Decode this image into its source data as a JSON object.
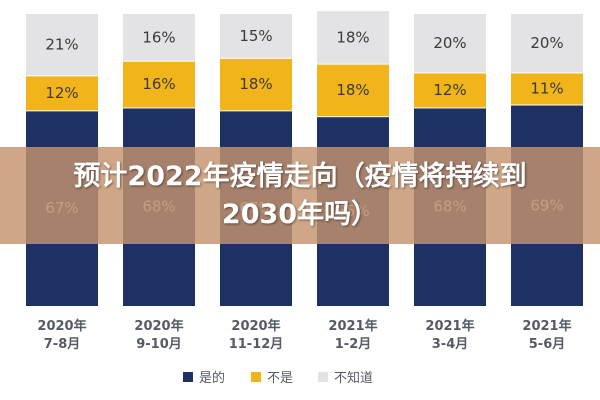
{
  "chart_data": {
    "type": "bar",
    "stacked": true,
    "categories": [
      "2020年\n7-8月",
      "2020年\n9-10月",
      "2020年\n11-12月",
      "2021年\n1-2月",
      "2021年\n3-4月",
      "2021年\n5-6月"
    ],
    "series": [
      {
        "name": "是的",
        "color": "#1e3165",
        "values": [
          67,
          68,
          67,
          65,
          68,
          69
        ]
      },
      {
        "name": "不是",
        "color": "#f2b41b",
        "values": [
          12,
          16,
          18,
          18,
          12,
          11
        ]
      },
      {
        "name": "不知道",
        "color": "#e3e3e5",
        "values": [
          21,
          16,
          15,
          18,
          20,
          20
        ]
      }
    ],
    "data_labels": [
      [
        "67%",
        "68%",
        "67%",
        "65%",
        "68%",
        "69%"
      ],
      [
        "12%",
        "16%",
        "18%",
        "18%",
        "12%",
        "11%"
      ],
      [
        "21%",
        "16%",
        "15%",
        "18%",
        "20%",
        "20%"
      ]
    ],
    "ylim": [
      0,
      100
    ],
    "legend_position": "bottom",
    "grid": false
  },
  "banner": {
    "title": "预计2022年疫情走向（疫情将持续到2030年吗）"
  }
}
